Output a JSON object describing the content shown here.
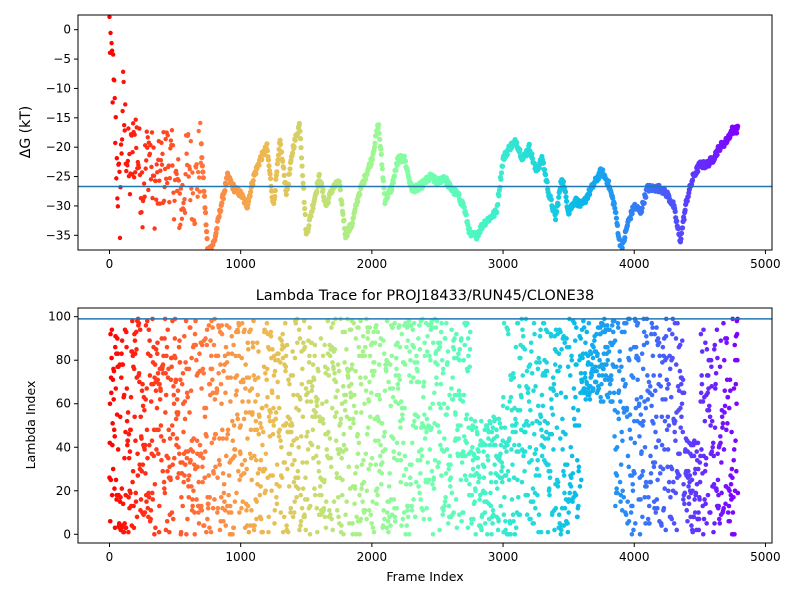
{
  "chart_data": [
    {
      "type": "scatter",
      "title": "",
      "xlabel": "",
      "ylabel": "ΔG (kT)",
      "xlim": [
        -240,
        5050
      ],
      "ylim": [
        -37.5,
        2.5
      ],
      "xticks": [
        0,
        1000,
        2000,
        3000,
        4000,
        5000
      ],
      "xtick_labels": [
        "0",
        "1000",
        "2000",
        "3000",
        "4000",
        "5000"
      ],
      "yticks": [
        0,
        -5,
        -10,
        -15,
        -20,
        -25,
        -30,
        -35
      ],
      "ytick_labels": [
        "0",
        "−5",
        "−10",
        "−15",
        "−20",
        "−25",
        "−30",
        "−35"
      ],
      "hline": -26.7,
      "hline_color": "#1f77b4",
      "colormap": "rainbow (reversed along frame index)",
      "grid": false,
      "series": [
        {
          "x": [
            0,
            20,
            40,
            60,
            80,
            100,
            150,
            200,
            250,
            300,
            350,
            400,
            450,
            500,
            550,
            600,
            650,
            700,
            750,
            800,
            850,
            900,
            950,
            1000,
            1050,
            1100,
            1150,
            1200,
            1250,
            1300,
            1350,
            1400,
            1450,
            1500,
            1550,
            1600,
            1650,
            1700,
            1750,
            1800,
            1850,
            1900,
            1950,
            2000,
            2050,
            2100,
            2150,
            2200,
            2250,
            2300,
            2350,
            2400,
            2450,
            2500,
            2550,
            2600,
            2650,
            2700,
            2750,
            2800,
            2850,
            2900,
            2950,
            3000,
            3050,
            3100,
            3150,
            3200,
            3250,
            3300,
            3350,
            3400,
            3450,
            3500,
            3550,
            3600,
            3650,
            3700,
            3750,
            3800,
            3850,
            3900,
            3950,
            4000,
            4050,
            4100,
            4150,
            4200,
            4250,
            4300,
            4350,
            4400,
            4450,
            4500,
            4550,
            4600,
            4650,
            4700,
            4750,
            4790
          ],
          "y": [
            0,
            -6,
            -15,
            -25,
            -30,
            -12,
            -25,
            -18,
            -27,
            -20,
            -28,
            -24,
            -22,
            -26,
            -30,
            -22,
            -28,
            -20,
            -38,
            -36,
            -30,
            -25,
            -27,
            -28,
            -30,
            -25,
            -22,
            -20,
            -30,
            -19,
            -28,
            -20,
            -16,
            -35,
            -30,
            -25,
            -30,
            -27,
            -26,
            -35,
            -33,
            -28,
            -25,
            -22,
            -16,
            -29,
            -27,
            -22,
            -22,
            -27,
            -27,
            -26,
            -25,
            -26,
            -25,
            -27,
            -28,
            -30,
            -35,
            -35,
            -33,
            -32,
            -31,
            -22,
            -20,
            -19,
            -22,
            -20,
            -24,
            -22,
            -28,
            -32,
            -25,
            -31,
            -29,
            -30,
            -28,
            -26,
            -24,
            -26,
            -30,
            -38,
            -33,
            -30,
            -31,
            -27,
            -27,
            -27,
            -28,
            -30,
            -36,
            -29,
            -25,
            -23,
            -23,
            -22,
            -20,
            -19,
            -17,
            -17
          ]
        }
      ]
    },
    {
      "type": "scatter",
      "title": "Lambda Trace for PROJ18433/RUN45/CLONE38",
      "xlabel": "Frame Index",
      "ylabel": "Lambda Index",
      "xlim": [
        -240,
        5050
      ],
      "ylim": [
        -4,
        104
      ],
      "xticks": [
        0,
        1000,
        2000,
        3000,
        4000,
        5000
      ],
      "xtick_labels": [
        "0",
        "1000",
        "2000",
        "3000",
        "4000",
        "5000"
      ],
      "yticks": [
        0,
        20,
        40,
        60,
        80,
        100
      ],
      "ytick_labels": [
        "0",
        "20",
        "40",
        "60",
        "80",
        "100"
      ],
      "hline": 99,
      "hline_color": "#1f77b4",
      "colormap": "rainbow (reversed along frame index)",
      "grid": false,
      "series": [
        {
          "x_range": [
            0,
            4790
          ],
          "y_range": [
            0,
            99
          ],
          "description_values": "lambda index sampled 0–99 per frame, 0 to ~4790 frames"
        }
      ]
    }
  ]
}
